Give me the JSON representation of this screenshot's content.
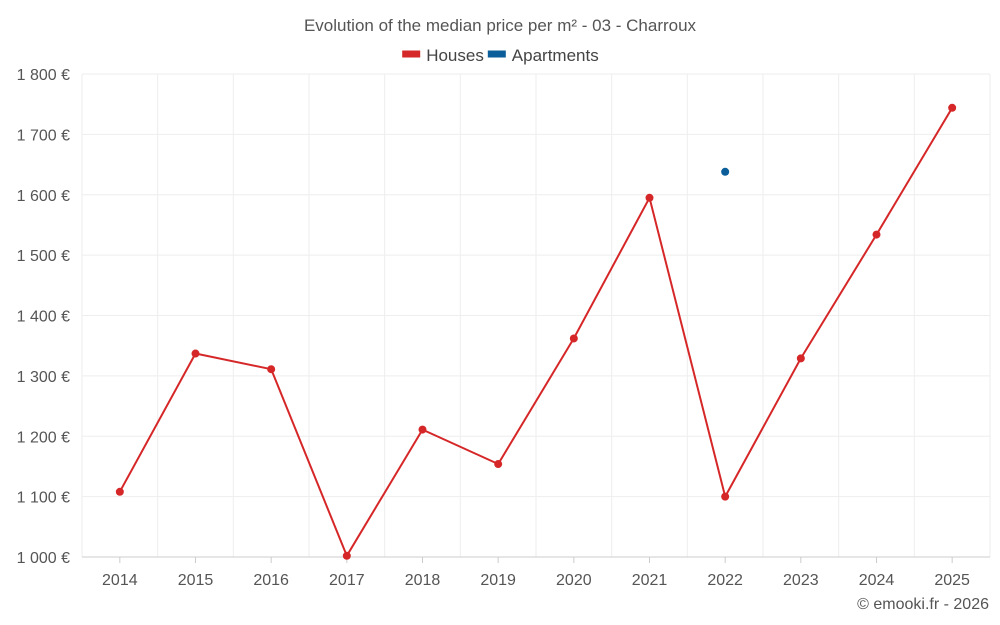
{
  "chart_data": {
    "type": "line",
    "title": "Evolution of the median price per m² - 03 - Charroux",
    "categories": [
      "2014",
      "2015",
      "2016",
      "2017",
      "2018",
      "2019",
      "2020",
      "2021",
      "2022",
      "2023",
      "2024",
      "2025"
    ],
    "series": [
      {
        "name": "Houses",
        "color": "#d62728",
        "values": [
          1108,
          1337,
          1311,
          1002,
          1211,
          1154,
          1362,
          1595,
          1100,
          1329,
          1534,
          1744
        ]
      },
      {
        "name": "Apartments",
        "color": "#0b5e99",
        "values": [
          null,
          null,
          null,
          null,
          null,
          null,
          null,
          null,
          1638,
          null,
          null,
          null
        ]
      }
    ],
    "ylim": [
      1000,
      1800
    ],
    "yticks": [
      1000,
      1100,
      1200,
      1300,
      1400,
      1500,
      1600,
      1700,
      1800
    ],
    "ytick_labels": [
      "1 000 €",
      "1 100 €",
      "1 200 €",
      "1 300 €",
      "1 400 €",
      "1 500 €",
      "1 600 €",
      "1 700 €",
      "1 800 €"
    ],
    "xlabel": "",
    "ylabel": "",
    "grid": true,
    "legend_position": "top-center",
    "credit": "© emooki.fr - 2026"
  }
}
